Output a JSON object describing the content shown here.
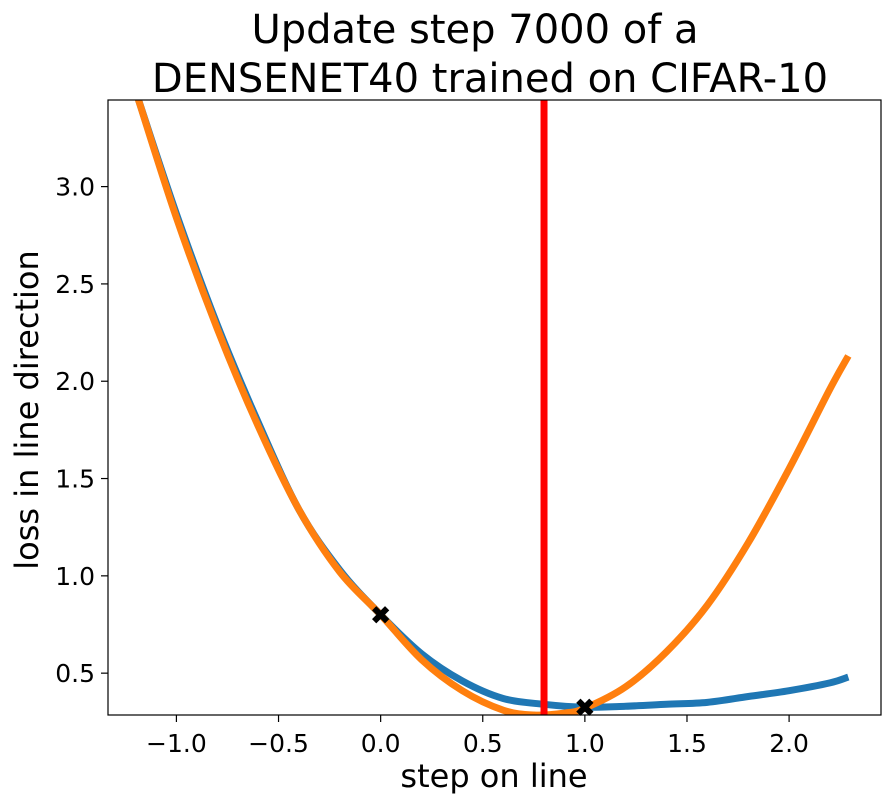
{
  "chart_data": {
    "type": "line",
    "title_lines": [
      "Update step 7000 of a",
      "DENSENET40 trained on CIFAR-10"
    ],
    "xlabel": "step on line",
    "ylabel": "loss in line direction",
    "xlim": [
      -1.335,
      2.45
    ],
    "ylim": [
      0.285,
      3.445
    ],
    "xticks": [
      -1.0,
      -0.5,
      0.0,
      0.5,
      1.0,
      1.5,
      2.0
    ],
    "xtick_labels": [
      "−1.0",
      "−0.5",
      "0.0",
      "0.5",
      "1.0",
      "1.5",
      "2.0"
    ],
    "yticks": [
      0.5,
      1.0,
      1.5,
      2.0,
      2.5,
      3.0
    ],
    "ytick_labels": [
      "0.5",
      "1.0",
      "1.5",
      "2.0",
      "2.5",
      "3.0"
    ],
    "grid": false,
    "legend": "none",
    "series": [
      {
        "color": "#1f77b4",
        "x": [
          -1.19,
          -1.0,
          -0.8,
          -0.6,
          -0.4,
          -0.2,
          0.0,
          0.2,
          0.4,
          0.6,
          0.8,
          1.0,
          1.2,
          1.4,
          1.6,
          1.8,
          2.0,
          2.2,
          2.29
        ],
        "y": [
          3.46,
          2.86,
          2.29,
          1.79,
          1.34,
          1.03,
          0.8,
          0.6,
          0.46,
          0.37,
          0.34,
          0.325,
          0.33,
          0.34,
          0.35,
          0.38,
          0.41,
          0.45,
          0.48
        ]
      },
      {
        "color": "#ff7f0e",
        "x": [
          -1.19,
          -1.0,
          -0.8,
          -0.6,
          -0.4,
          -0.2,
          0.0,
          0.2,
          0.4,
          0.6,
          0.75,
          0.9,
          1.0,
          1.2,
          1.4,
          1.6,
          1.8,
          2.0,
          2.2,
          2.29
        ],
        "y": [
          3.46,
          2.84,
          2.27,
          1.77,
          1.34,
          1.02,
          0.8,
          0.57,
          0.41,
          0.31,
          0.285,
          0.295,
          0.32,
          0.43,
          0.61,
          0.85,
          1.17,
          1.55,
          1.96,
          2.13
        ]
      }
    ],
    "markers": [
      {
        "x": 0.0,
        "y": 0.8,
        "color": "#000000",
        "shape": "X"
      },
      {
        "x": 1.0,
        "y": 0.325,
        "color": "#000000",
        "shape": "X"
      }
    ],
    "vlines": [
      {
        "x": 0.8,
        "color": "#ff0000"
      }
    ]
  }
}
